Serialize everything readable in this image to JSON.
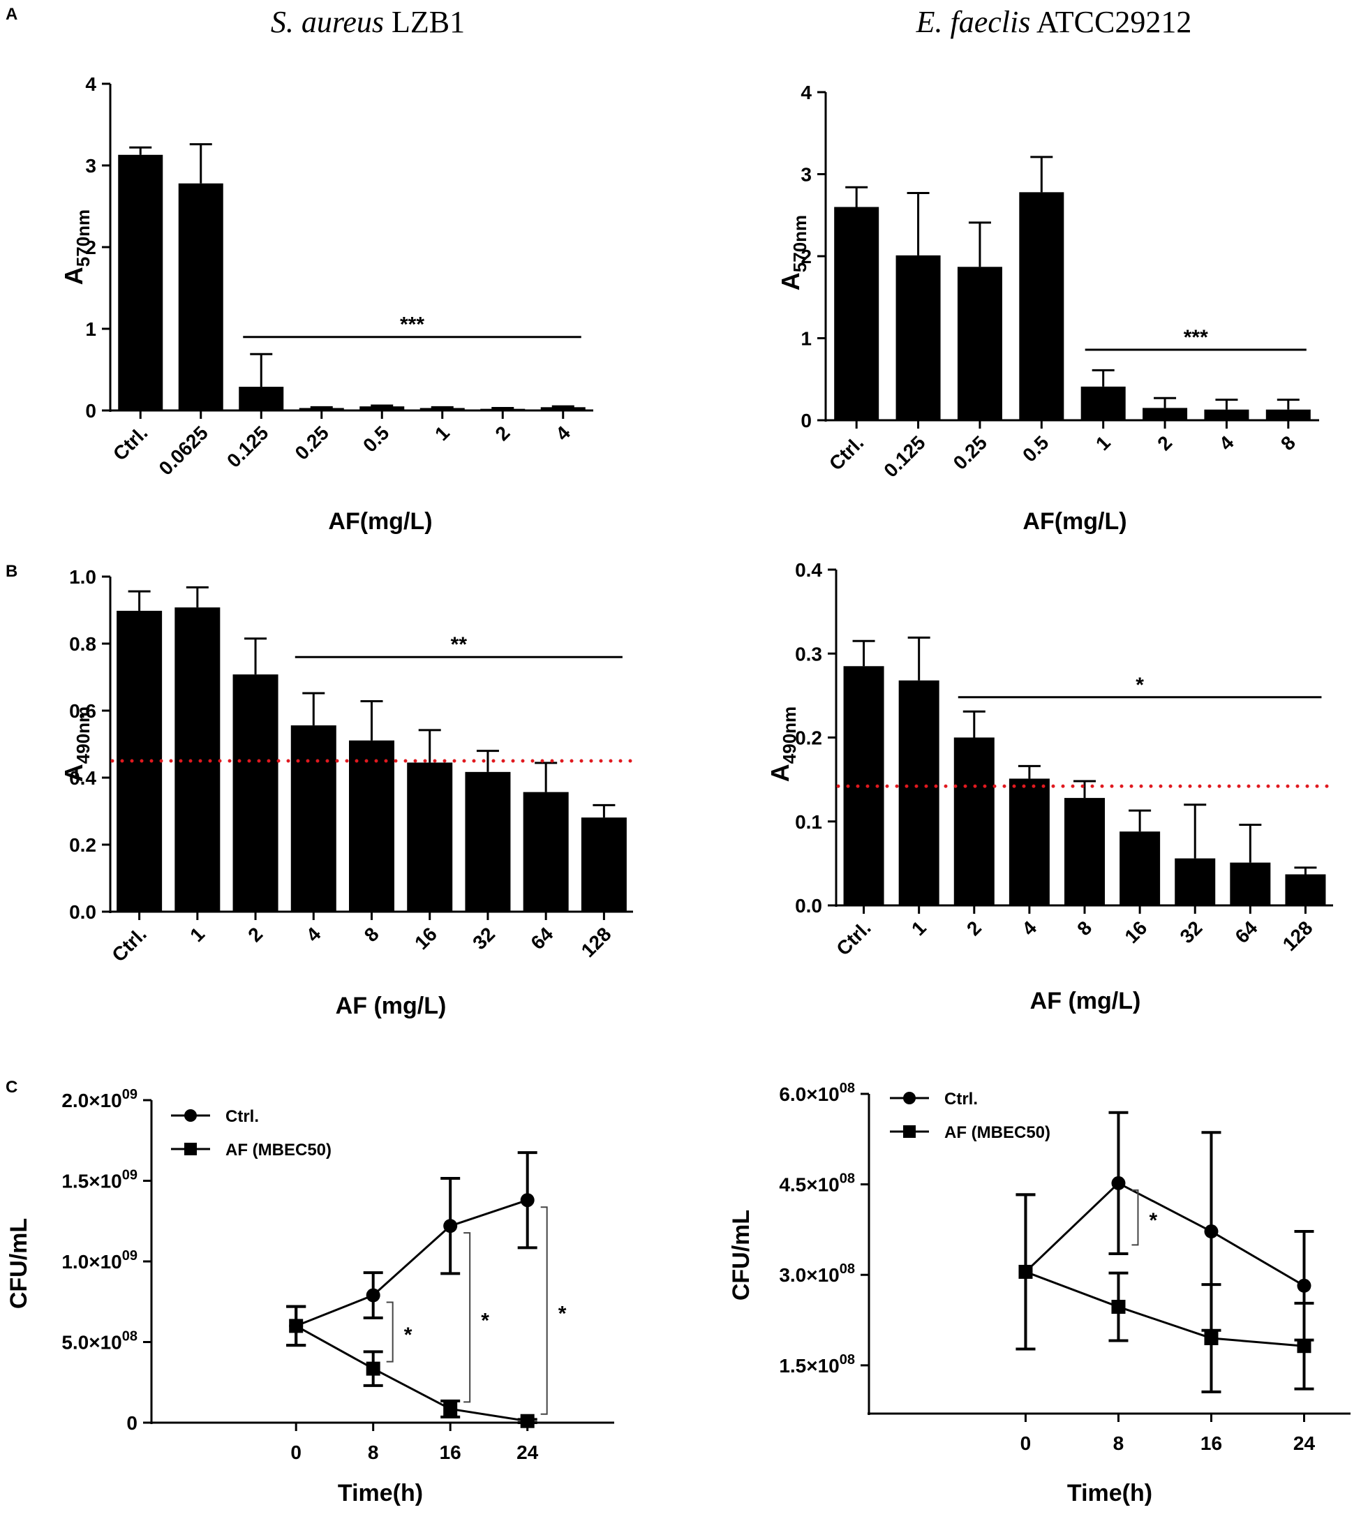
{
  "panel_labels": [
    "A",
    "B",
    "C"
  ],
  "titles": [
    {
      "species": "S. aureus",
      "strain": "LZB1"
    },
    {
      "species": "E. faeclis",
      "strain": "ATCC29212"
    }
  ],
  "chart_data": [
    {
      "id": "A1",
      "panel": "A",
      "type": "bar",
      "title": "S. aureus LZB1",
      "ylabel": "A",
      "ylabel_sub": "570nm",
      "xlabel": "AF(mg/L)",
      "categories": [
        "Ctrl.",
        "0.0625",
        "0.125",
        "0.25",
        "0.5",
        "1",
        "2",
        "4"
      ],
      "values": [
        3.13,
        2.78,
        0.29,
        0.03,
        0.05,
        0.03,
        0.02,
        0.04
      ],
      "errors": [
        0.09,
        0.48,
        0.4,
        0.01,
        0.01,
        0.01,
        0.01,
        0.01
      ],
      "ylim": [
        0,
        4
      ],
      "yticks": [
        "0",
        "1",
        "2",
        "3",
        "4"
      ],
      "ytick_values": [
        0,
        1,
        2,
        3,
        4
      ],
      "significance": {
        "label": "***",
        "from_index": 2,
        "to_index": 7,
        "y": 0.9
      }
    },
    {
      "id": "A2",
      "panel": "A",
      "type": "bar",
      "title": "E. faeclis ATCC29212",
      "ylabel": "A",
      "ylabel_sub": "570nm",
      "xlabel": "AF(mg/L)",
      "categories": [
        "Ctrl.",
        "0.125",
        "0.25",
        "0.5",
        "1",
        "2",
        "4",
        "8"
      ],
      "values": [
        2.6,
        2.01,
        1.87,
        2.78,
        0.41,
        0.15,
        0.13,
        0.13
      ],
      "errors": [
        0.24,
        0.76,
        0.54,
        0.43,
        0.2,
        0.12,
        0.12,
        0.12
      ],
      "ylim": [
        0,
        4
      ],
      "yticks": [
        "0",
        "1",
        "2",
        "3",
        "4"
      ],
      "ytick_values": [
        0,
        1,
        2,
        3,
        4
      ],
      "significance": {
        "label": "***",
        "from_index": 4,
        "to_index": 7,
        "y": 0.86
      }
    },
    {
      "id": "B1",
      "panel": "B",
      "type": "bar",
      "ylabel": "A",
      "ylabel_sub": "490nm",
      "xlabel": "AF (mg/L)",
      "categories": [
        "Ctrl.",
        "1",
        "2",
        "4",
        "8",
        "16",
        "32",
        "64",
        "128"
      ],
      "values": [
        0.898,
        0.908,
        0.708,
        0.556,
        0.511,
        0.445,
        0.417,
        0.357,
        0.281
      ],
      "errors": [
        0.058,
        0.06,
        0.107,
        0.096,
        0.117,
        0.097,
        0.063,
        0.087,
        0.037
      ],
      "ylim": [
        0,
        1.0
      ],
      "yticks": [
        "0.0",
        "0.2",
        "0.4",
        "0.6",
        "0.8",
        "1.0"
      ],
      "ytick_values": [
        0,
        0.2,
        0.4,
        0.6,
        0.8,
        1.0
      ],
      "reference_line": {
        "y": 0.45,
        "color": "#e0191f",
        "style": "dotted"
      },
      "significance": {
        "label": "**",
        "from_index": 3,
        "to_index": 8,
        "y": 0.76
      }
    },
    {
      "id": "B2",
      "panel": "B",
      "type": "bar",
      "ylabel": "A",
      "ylabel_sub": "490nm",
      "xlabel": "AF (mg/L)",
      "categories": [
        "Ctrl.",
        "1",
        "2",
        "4",
        "8",
        "16",
        "32",
        "64",
        "128"
      ],
      "values": [
        0.285,
        0.268,
        0.2,
        0.151,
        0.128,
        0.088,
        0.056,
        0.051,
        0.037
      ],
      "errors": [
        0.03,
        0.051,
        0.031,
        0.015,
        0.02,
        0.025,
        0.064,
        0.045,
        0.008
      ],
      "ylim": [
        0,
        0.4
      ],
      "yticks": [
        "0.0",
        "0.1",
        "0.2",
        "0.3",
        "0.4"
      ],
      "ytick_values": [
        0,
        0.1,
        0.2,
        0.3,
        0.4
      ],
      "reference_line": {
        "y": 0.142,
        "color": "#e0191f",
        "style": "dotted"
      },
      "significance": {
        "label": "*",
        "from_index": 2,
        "to_index": 8,
        "y": 0.248
      }
    },
    {
      "id": "C1",
      "panel": "C",
      "type": "line",
      "ylabel": "CFU/mL",
      "xlabel": "Time(h)",
      "x": [
        0,
        8,
        16,
        24
      ],
      "xlim": [
        -15,
        33
      ],
      "xticks": [
        "0",
        "8",
        "16",
        "24"
      ],
      "ylim": [
        0,
        2000000000
      ],
      "ytick_values": [
        0,
        500000000,
        1000000000,
        1500000000,
        2000000000
      ],
      "ytick_labels": [
        {
          "mant": "0",
          "exp": ""
        },
        {
          "mant": "5.0×10",
          "exp": "08"
        },
        {
          "mant": "1.0×10",
          "exp": "09"
        },
        {
          "mant": "1.5×10",
          "exp": "09"
        },
        {
          "mant": "2.0×10",
          "exp": "09"
        }
      ],
      "series": [
        {
          "name": "Ctrl.",
          "marker": "circle",
          "values": [
            600000000,
            790000000,
            1220000000,
            1380000000
          ],
          "errors": [
            120000000,
            140000000,
            295000000,
            295000000
          ]
        },
        {
          "name": "AF (MBEC50)",
          "marker": "square",
          "values": [
            600000000,
            335000000,
            85000000,
            10000000
          ],
          "errors": [
            120000000,
            105000000,
            50000000,
            10000000
          ]
        }
      ],
      "significance": [
        {
          "label": "*",
          "x": 8,
          "from": 335000000,
          "to": 790000000
        },
        {
          "label": "*",
          "x": 16,
          "from": 85000000,
          "to": 1220000000
        },
        {
          "label": "*",
          "x": 24,
          "from": 10000000,
          "to": 1380000000
        }
      ]
    },
    {
      "id": "C2",
      "panel": "C",
      "type": "line",
      "ylabel": "CFU/mL",
      "xlabel": "Time(h)",
      "x": [
        0,
        8,
        16,
        24
      ],
      "xlim": [
        -13.5,
        28
      ],
      "xticks": [
        "0",
        "8",
        "16",
        "24"
      ],
      "ylim": [
        70000000,
        600000000
      ],
      "ytick_values": [
        150000000,
        300000000,
        450000000,
        600000000
      ],
      "ytick_labels": [
        {
          "mant": "1.5×10",
          "exp": "08"
        },
        {
          "mant": "3.0×10",
          "exp": "08"
        },
        {
          "mant": "4.5×10",
          "exp": "08"
        },
        {
          "mant": "6.0×10",
          "exp": "08"
        }
      ],
      "series": [
        {
          "name": "Ctrl.",
          "marker": "circle",
          "values": [
            305000000,
            452000000,
            372000000,
            282000000
          ],
          "errors": [
            128000000,
            117000000,
            164000000,
            90000000
          ]
        },
        {
          "name": "AF (MBEC50)",
          "marker": "square",
          "values": [
            305000000,
            247000000,
            195000000,
            182000000
          ],
          "errors": [
            128000000,
            56000000,
            89000000,
            71000000
          ]
        }
      ],
      "significance": [
        {
          "label": "*",
          "x": 8,
          "from": 338000000,
          "to": 452000000
        }
      ]
    }
  ]
}
